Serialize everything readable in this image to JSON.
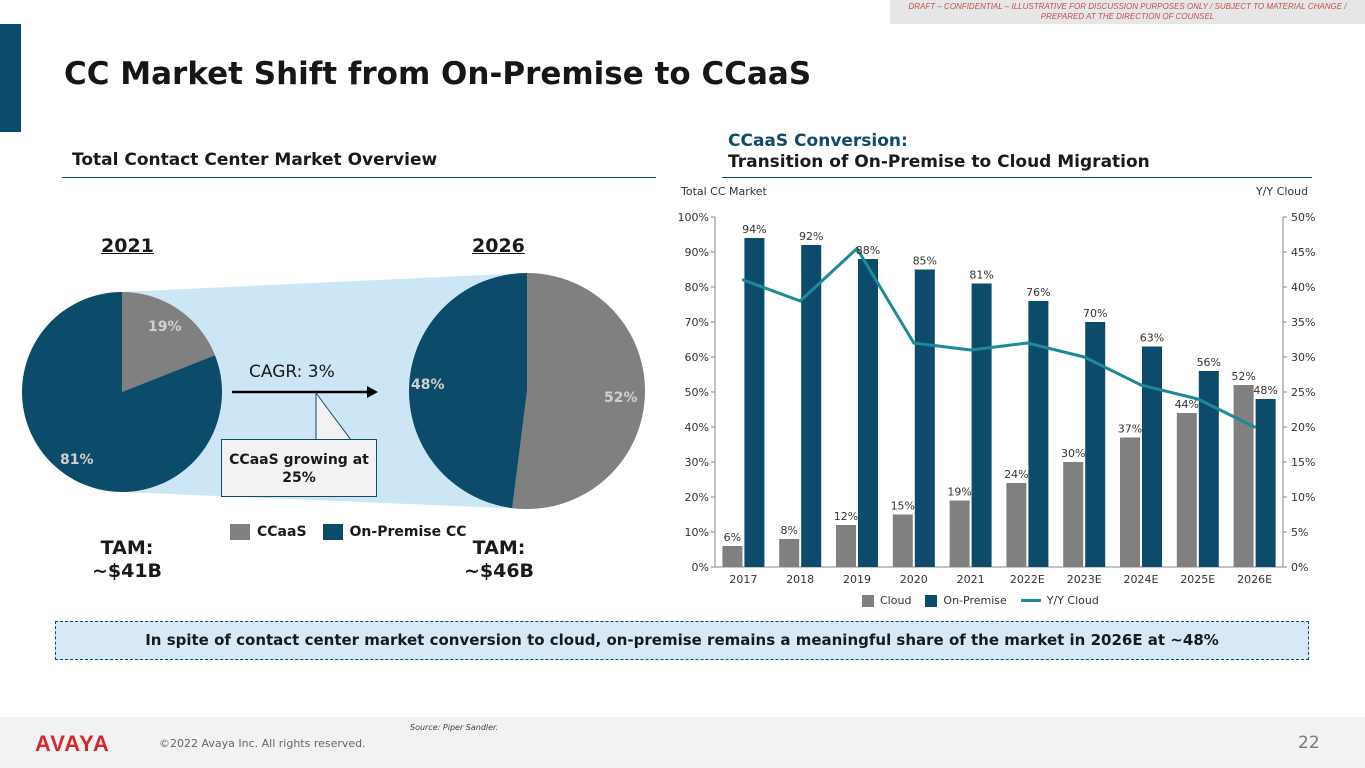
{
  "banner": "DRAFT – CONFIDENTIAL – ILLUSTRATIVE FOR DISCUSSION PURPOSES ONLY / SUBJECT TO MATERIAL CHANGE / PREPARED AT THE DIRECTION OF COUNSEL",
  "title": "CC Market Shift from On-Premise to CCaaS",
  "left": {
    "section_title": "Total Contact Center Market Overview",
    "year_a": "2021",
    "year_b": "2026",
    "pie_2021": {
      "ccaas_label": "19%",
      "onprem_label": "81%",
      "ccaas": 19,
      "onprem": 81
    },
    "pie_2026": {
      "ccaas_label": "52%",
      "onprem_label": "48%",
      "ccaas": 52,
      "onprem": 48
    },
    "cagr": "CAGR: 3%",
    "callout": "CCaaS growing at 25%",
    "legend_ccaas": "CCaaS",
    "legend_onprem": "On-Premise CC",
    "tam_label": "TAM:",
    "tam_2021": "~$41B",
    "tam_2026": "~$46B"
  },
  "right": {
    "title_1": "CCaaS Conversion:",
    "title_2": "Transition of On-Premise to Cloud Migration",
    "axis_left_title": "Total CC Market",
    "axis_right_title": "Y/Y Cloud",
    "legend_cloud": "Cloud",
    "legend_onprem": "On-Premise",
    "legend_yoy": "Y/Y Cloud"
  },
  "chart_data": {
    "type": "bar",
    "title": "CCaaS Conversion: Transition of On-Premise to Cloud Migration",
    "categories": [
      "2017",
      "2018",
      "2019",
      "2020",
      "2021",
      "2022E",
      "2023E",
      "2024E",
      "2025E",
      "2026E"
    ],
    "series": [
      {
        "name": "Cloud",
        "type": "bar",
        "axis": "left",
        "values": [
          6,
          8,
          12,
          15,
          19,
          24,
          30,
          37,
          44,
          52
        ]
      },
      {
        "name": "On-Premise",
        "type": "bar",
        "axis": "left",
        "values": [
          94,
          92,
          88,
          85,
          81,
          76,
          70,
          63,
          56,
          48
        ]
      },
      {
        "name": "Y/Y Cloud",
        "type": "line",
        "axis": "right",
        "values": [
          41,
          38,
          45.5,
          32,
          31,
          32,
          30,
          26,
          24,
          20
        ]
      }
    ],
    "ylabel": "Total CC Market",
    "y2label": "Y/Y Cloud",
    "ylim": [
      0,
      100
    ],
    "y2lim": [
      0,
      50
    ],
    "yticks": [
      "0%",
      "10%",
      "20%",
      "30%",
      "40%",
      "50%",
      "60%",
      "70%",
      "80%",
      "90%",
      "100%"
    ],
    "y2ticks": [
      "0%",
      "5%",
      "10%",
      "15%",
      "20%",
      "25%",
      "30%",
      "35%",
      "40%",
      "45%",
      "50%"
    ],
    "legend": "bottom"
  },
  "conclusion": "In spite of contact center market conversion to cloud, on-premise remains a meaningful share of the market in 2026E at ~48%",
  "source": "Source: Piper Sandler.",
  "logo": "AVAYA",
  "copyright": "©2022 Avaya Inc. All rights reserved.",
  "page_number": "22",
  "colors": {
    "navy": "#0c4b6a",
    "gray": "#808080",
    "teal": "#1e8a99",
    "light_blue": "#cde6f6"
  }
}
